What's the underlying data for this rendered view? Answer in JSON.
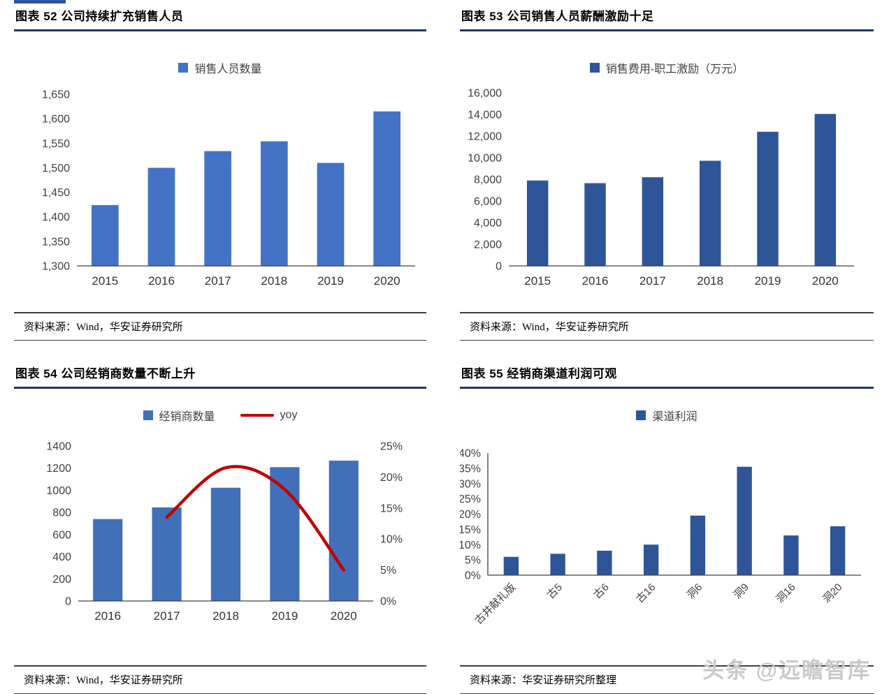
{
  "page": {
    "watermark": "头条 @远瞻智库"
  },
  "panels": [
    {
      "figure_title": "图表 52 公司持续扩充销售人员",
      "legend": [
        {
          "label": "销售人员数量",
          "color": "#4472C4",
          "type": "square"
        }
      ],
      "source": "资料来源：Wind，华安证券研究所"
    },
    {
      "figure_title": "图表 53 公司销售人员薪酬激励十足",
      "legend": [
        {
          "label": "销售费用-职工激励（万元）",
          "color": "#2E5597",
          "type": "square"
        }
      ],
      "source": "资料来源：Wind，华安证券研究所"
    },
    {
      "figure_title": "图表 54 公司经销商数量不断上升",
      "legend": [
        {
          "label": "经销商数量",
          "color": "#4170B8",
          "type": "square"
        },
        {
          "label": "yoy",
          "color": "#C00000",
          "type": "line"
        }
      ],
      "source": "资料来源：Wind，华安证券研究所"
    },
    {
      "figure_title": "图表 55 经销商渠道利润可观",
      "legend": [
        {
          "label": "渠道利润",
          "color": "#2E5597",
          "type": "square"
        }
      ],
      "source": "资料来源：华安证券研究所整理"
    }
  ],
  "chart_data": [
    {
      "type": "bar",
      "title": "公司持续扩充销售人员",
      "ylabel": "销售人员数量",
      "categories": [
        "2015",
        "2016",
        "2017",
        "2018",
        "2019",
        "2020"
      ],
      "values": [
        1424,
        1500,
        1534,
        1554,
        1510,
        1615
      ],
      "ylim": [
        1300,
        1650
      ],
      "ystep": 50,
      "y_format": "comma",
      "bar_color": "#4472C4",
      "bar_frac": 0.48,
      "grid": false,
      "legend_position": "top",
      "margins": {
        "l": 90,
        "r": 16,
        "t": 24,
        "b": 40
      }
    },
    {
      "type": "bar",
      "title": "公司销售人员薪酬激励十足",
      "ylabel": "销售费用-职工激励（万元）",
      "categories": [
        "2015",
        "2016",
        "2017",
        "2018",
        "2019",
        "2020"
      ],
      "values": [
        7900,
        7650,
        8200,
        9720,
        12400,
        14050
      ],
      "ylim": [
        0,
        16000
      ],
      "ystep": 2000,
      "y_format": "comma",
      "bar_color": "#2E5597",
      "bar_frac": 0.37,
      "grid": false,
      "legend_position": "top",
      "margins": {
        "l": 70,
        "r": 28,
        "t": 22,
        "b": 40
      }
    },
    {
      "type": "bar+line",
      "title": "公司经销商数量不断上升",
      "ylabel": "经销商数量",
      "y2label": "yoy",
      "categories": [
        "2016",
        "2017",
        "2018",
        "2019",
        "2020"
      ],
      "values": [
        740,
        845,
        1023,
        1209,
        1268
      ],
      "ylim": [
        0,
        1400
      ],
      "ystep": 200,
      "y_format": "plain",
      "bar_color": "#4170B8",
      "bar_frac": 0.5,
      "line": {
        "name": "yoy",
        "color": "#C00000",
        "values": [
          null,
          13.5,
          21.5,
          18.0,
          5.0
        ]
      },
      "y2lim": [
        0,
        25
      ],
      "y2step": 5,
      "y2_format": "percent",
      "grid": false,
      "legend_position": "top",
      "margins": {
        "l": 92,
        "r": 76,
        "t": 30,
        "b": 58
      }
    },
    {
      "type": "bar",
      "title": "经销商渠道利润可观",
      "ylabel": "渠道利润",
      "categories": [
        "古井献礼版",
        "古5",
        "古6",
        "古16",
        "洞6",
        "洞9",
        "洞16",
        "洞20"
      ],
      "values": [
        6,
        7,
        8,
        10,
        19.5,
        35.5,
        13,
        16
      ],
      "ylim": [
        0,
        40
      ],
      "ystep": 5,
      "y_format": "percent",
      "bar_color": "#2E5597",
      "bar_frac": 0.32,
      "x_rotate": true,
      "axis_left": true,
      "grid": false,
      "legend_position": "top",
      "margins": {
        "l": 40,
        "r": 18,
        "t": 40,
        "b": 95
      }
    }
  ]
}
